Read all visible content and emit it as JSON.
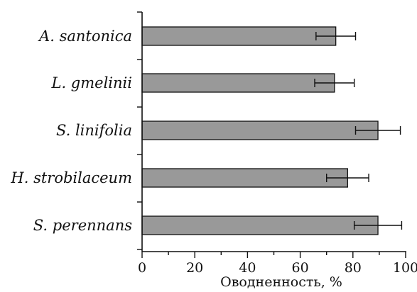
{
  "chart_data": {
    "type": "bar",
    "orientation": "horizontal",
    "title": "",
    "xlabel": "Оводненность, %",
    "ylabel": "",
    "xlim": [
      0,
      100
    ],
    "xticks": [
      0,
      20,
      40,
      60,
      80,
      100
    ],
    "categories": [
      "A. santonica",
      "L. gmelinii",
      "S. linifolia",
      "H. strobilaceum",
      "S. perennans"
    ],
    "values": [
      73.5,
      73,
      89.5,
      78,
      89.5
    ],
    "errors": [
      7.5,
      7.5,
      8.5,
      8,
      9
    ],
    "bar_color": "#999999",
    "grid": false,
    "legend": "none"
  }
}
